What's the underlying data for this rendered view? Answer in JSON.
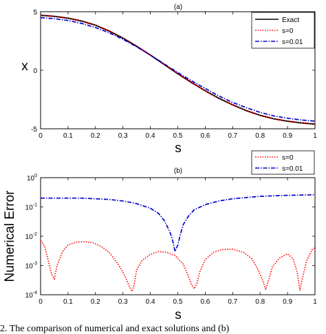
{
  "chart_data": [
    {
      "type": "line",
      "title": "(a)",
      "xlabel": "s",
      "ylabel": "x",
      "xlim": [
        0,
        1
      ],
      "ylim": [
        -5,
        5
      ],
      "xticks": [
        "0",
        "0.1",
        "0.2",
        "0.3",
        "0.4",
        "0.5",
        "0.6",
        "0.7",
        "0.8",
        "0.9",
        "1"
      ],
      "yticks": [
        "5",
        "0",
        "-5"
      ],
      "legend_position": "top-right",
      "grid": false,
      "series": [
        {
          "name": "Exact",
          "color": "#000000",
          "style": "solid",
          "x": [
            0,
            0.05,
            0.1,
            0.15,
            0.2,
            0.25,
            0.3,
            0.35,
            0.4,
            0.45,
            0.5,
            0.55,
            0.6,
            0.65,
            0.7,
            0.75,
            0.8,
            0.85,
            0.9,
            0.95,
            1
          ],
          "y": [
            4.7,
            4.6,
            4.45,
            4.2,
            3.85,
            3.35,
            2.75,
            2.05,
            1.3,
            0.5,
            -0.3,
            -1.05,
            -1.75,
            -2.4,
            -2.95,
            -3.45,
            -3.85,
            -4.15,
            -4.35,
            -4.5,
            -4.6
          ]
        },
        {
          "name": "s=0",
          "color": "#ff0000",
          "style": "dotted",
          "x": [
            0,
            0.05,
            0.1,
            0.15,
            0.2,
            0.25,
            0.3,
            0.35,
            0.4,
            0.45,
            0.5,
            0.55,
            0.6,
            0.65,
            0.7,
            0.75,
            0.8,
            0.85,
            0.9,
            0.95,
            1
          ],
          "y": [
            4.7,
            4.6,
            4.45,
            4.2,
            3.85,
            3.35,
            2.75,
            2.05,
            1.3,
            0.5,
            -0.3,
            -1.05,
            -1.75,
            -2.4,
            -2.95,
            -3.45,
            -3.85,
            -4.15,
            -4.35,
            -4.5,
            -4.6
          ]
        },
        {
          "name": "s=0.01",
          "color": "#0000cc",
          "style": "dashdot",
          "x": [
            0,
            0.05,
            0.1,
            0.15,
            0.2,
            0.25,
            0.3,
            0.35,
            0.4,
            0.45,
            0.5,
            0.55,
            0.6,
            0.65,
            0.7,
            0.75,
            0.8,
            0.85,
            0.9,
            0.95,
            1
          ],
          "y": [
            4.5,
            4.4,
            4.25,
            4.0,
            3.65,
            3.2,
            2.65,
            2.0,
            1.3,
            0.55,
            -0.2,
            -0.9,
            -1.55,
            -2.2,
            -2.75,
            -3.2,
            -3.6,
            -3.9,
            -4.1,
            -4.25,
            -4.35
          ]
        }
      ]
    },
    {
      "type": "line",
      "title": "(b)",
      "xlabel": "s",
      "ylabel": "Numerical Error",
      "xlim": [
        0,
        1
      ],
      "ylim": [
        0.0001,
        1
      ],
      "yscale": "log",
      "xticks": [
        "0",
        "0.1",
        "0.2",
        "0.3",
        "0.4",
        "0.5",
        "0.6",
        "0.7",
        "0.8",
        "0.9",
        "1"
      ],
      "yticks": [
        {
          "value": 1,
          "base": "10",
          "exp": "0"
        },
        {
          "value": 0.1,
          "base": "10",
          "exp": "-1"
        },
        {
          "value": 0.01,
          "base": "10",
          "exp": "-2"
        },
        {
          "value": 0.001,
          "base": "10",
          "exp": "-3"
        },
        {
          "value": 0.0001,
          "base": "10",
          "exp": "-4"
        }
      ],
      "legend_position": "outside-top-right",
      "grid": false,
      "series": [
        {
          "name": "s=0",
          "color": "#ff0000",
          "style": "dotted",
          "x": [
            0,
            0.01,
            0.02,
            0.03,
            0.04,
            0.05,
            0.06,
            0.08,
            0.1,
            0.13,
            0.16,
            0.19,
            0.22,
            0.25,
            0.28,
            0.3,
            0.315,
            0.325,
            0.333,
            0.34,
            0.35,
            0.37,
            0.4,
            0.43,
            0.46,
            0.49,
            0.52,
            0.54,
            0.55,
            0.56,
            0.57,
            0.58,
            0.6,
            0.63,
            0.66,
            0.7,
            0.74,
            0.77,
            0.79,
            0.81,
            0.82,
            0.83,
            0.845,
            0.87,
            0.9,
            0.92,
            0.935,
            0.945,
            0.955,
            0.97,
            0.99,
            1
          ],
          "y": [
            0.007,
            0.0055,
            0.003,
            0.0012,
            0.0005,
            0.00035,
            0.001,
            0.003,
            0.005,
            0.0063,
            0.0065,
            0.006,
            0.0045,
            0.0028,
            0.0012,
            0.0006,
            0.0003,
            0.00018,
            0.00013,
            0.0002,
            0.0007,
            0.0015,
            0.0024,
            0.003,
            0.0028,
            0.0022,
            0.0011,
            0.0004,
            0.00022,
            0.00016,
            0.00025,
            0.0006,
            0.0016,
            0.0028,
            0.0035,
            0.0036,
            0.0028,
            0.0017,
            0.0008,
            0.0003,
            0.00015,
            0.0003,
            0.0009,
            0.0018,
            0.0025,
            0.0017,
            0.0006,
            0.00014,
            0.0004,
            0.0015,
            0.0035,
            0.004
          ]
        },
        {
          "name": "s=0.01",
          "color": "#0000cc",
          "style": "dashdot",
          "x": [
            0,
            0.05,
            0.1,
            0.15,
            0.2,
            0.25,
            0.3,
            0.35,
            0.4,
            0.43,
            0.45,
            0.47,
            0.48,
            0.49,
            0.5,
            0.51,
            0.52,
            0.54,
            0.56,
            0.6,
            0.65,
            0.7,
            0.75,
            0.8,
            0.85,
            0.9,
            0.95,
            1
          ],
          "y": [
            0.2,
            0.2,
            0.2,
            0.2,
            0.19,
            0.18,
            0.16,
            0.13,
            0.09,
            0.06,
            0.035,
            0.015,
            0.008,
            0.003,
            0.005,
            0.012,
            0.025,
            0.05,
            0.08,
            0.12,
            0.16,
            0.19,
            0.21,
            0.23,
            0.24,
            0.25,
            0.255,
            0.26
          ]
        }
      ]
    }
  ],
  "caption": "2. The comparison of numerical and exact solutions and (b)"
}
